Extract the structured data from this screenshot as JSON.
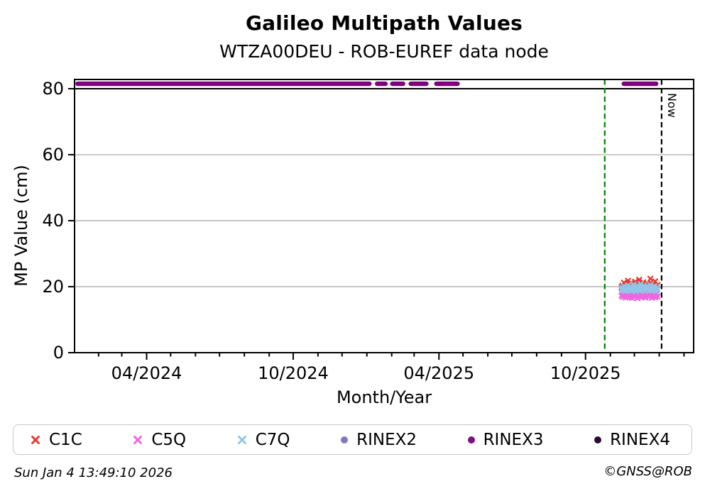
{
  "title": "Galileo Multipath Values",
  "subtitle": "WTZA00DEU - ROB-EUREF data node",
  "footer": {
    "timestamp": "Sun Jan  4 13:49:10 2026",
    "credit": "©GNSS@ROB"
  },
  "chart_data": {
    "type": "scatter",
    "title": "Galileo Multipath Values",
    "subtitle": "WTZA00DEU - ROB-EUREF data node",
    "xlabel": "Month/Year",
    "ylabel": "MP Value (cm)",
    "x_start": "2024-01-02",
    "x_end": "2026-02-13",
    "ylim": [
      0,
      82.8
    ],
    "yticks": [
      0,
      20,
      40,
      60,
      80
    ],
    "xticks_major_labels": [
      "04/2024",
      "10/2024",
      "04/2025",
      "10/2025"
    ],
    "grid": "horizontal-only",
    "gridline_color": "#b3b3b3",
    "hline": {
      "y": 80,
      "color": "#000000"
    },
    "vlines": [
      {
        "date": "2025-10-25",
        "color": "#008000",
        "style": "dashed",
        "label": ""
      },
      {
        "date": "2026-01-04",
        "color": "#000000",
        "style": "dashed",
        "label": "Now"
      }
    ],
    "availability": {
      "name": "RINEX3",
      "value": 81.5,
      "color": "#800080",
      "segments": [
        [
          "2024-01-03",
          "2025-01-07"
        ],
        [
          "2025-01-11",
          "2025-01-27"
        ],
        [
          "2025-01-30",
          "2025-02-18"
        ],
        [
          "2025-02-22",
          "2025-03-19"
        ],
        [
          "2025-03-26",
          "2025-04-27"
        ],
        [
          "2025-11-15",
          "2025-12-31"
        ]
      ]
    },
    "series": [
      {
        "name": "C1C",
        "marker": "x",
        "color": "#e8392e",
        "start": "2025-11-15",
        "step_days": 1,
        "values": [
          19.8,
          20.3,
          19.5,
          21.2,
          20.1,
          19.2,
          20.6,
          19.9,
          21.8,
          20.4,
          19.4,
          20.0,
          21.1,
          19.7,
          20.8,
          19.3,
          20.2,
          21.5,
          19.6,
          20.9,
          19.1,
          20.5,
          22.1,
          20.0,
          19.5,
          20.7,
          19.9,
          21.3,
          20.2,
          18.9,
          20.4,
          19.6,
          21.0,
          20.6,
          19.3,
          20.1,
          22.4,
          19.8,
          20.3,
          19.0,
          20.8,
          19.5,
          21.6,
          20.0,
          19.7,
          20.5
        ]
      },
      {
        "name": "C5Q",
        "marker": "x",
        "color": "#ee66e0",
        "start": "2025-11-15",
        "step_days": 1,
        "values": [
          17.2,
          17.6,
          16.9,
          17.9,
          17.3,
          16.7,
          17.8,
          17.1,
          18.2,
          17.4,
          16.8,
          17.5,
          18.0,
          16.6,
          17.3,
          17.7,
          16.9,
          18.4,
          17.2,
          17.6,
          16.5,
          17.9,
          17.3,
          18.1,
          16.8,
          17.4,
          17.8,
          17.0,
          18.6,
          17.2,
          16.7,
          17.5,
          17.9,
          17.1,
          16.9,
          18.3,
          17.4,
          17.7,
          16.6,
          17.2,
          18.0,
          17.5,
          16.8,
          17.3,
          17.8,
          17.0
        ]
      },
      {
        "name": "C7Q",
        "marker": "x",
        "color": "#92c5e8",
        "start": "2025-11-15",
        "step_days": 1,
        "values": [
          19.2,
          19.6,
          18.9,
          20.1,
          19.4,
          18.7,
          19.8,
          19.3,
          20.4,
          19.0,
          19.5,
          20.0,
          18.8,
          19.7,
          19.2,
          20.6,
          19.1,
          19.9,
          18.6,
          19.4,
          20.2,
          19.0,
          19.6,
          18.9,
          20.8,
          19.3,
          19.8,
          19.1,
          20.3,
          18.7,
          19.5,
          19.9,
          19.2,
          20.0,
          18.8,
          19.6,
          20.5,
          19.0,
          19.4,
          18.9,
          19.7,
          20.1,
          19.3,
          18.6,
          19.8,
          19.2
        ]
      }
    ],
    "legend": [
      {
        "label": "C1C",
        "marker": "x",
        "color": "#e8392e"
      },
      {
        "label": "C5Q",
        "marker": "x",
        "color": "#ee66e0"
      },
      {
        "label": "C7Q",
        "marker": "x",
        "color": "#92c5e8"
      },
      {
        "label": "RINEX2",
        "marker": "dot",
        "color": "#7f76c4"
      },
      {
        "label": "RINEX3",
        "marker": "dot",
        "color": "#7d0d84"
      },
      {
        "label": "RINEX4",
        "marker": "dot",
        "color": "#2a0a33"
      }
    ],
    "legend_position": "bottom"
  }
}
